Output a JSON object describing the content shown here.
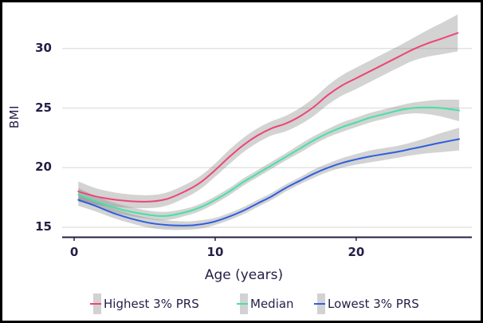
{
  "window": {
    "bg": "#ffffff",
    "frame_color": "#000000",
    "text_color": "#241f47"
  },
  "chart_data": {
    "type": "line",
    "title": "",
    "xlabel": "Age (years)",
    "ylabel": "BMI",
    "x_ticks": [
      "0",
      "10",
      "20"
    ],
    "x_tick_values": [
      0,
      10,
      20
    ],
    "y_ticks": [
      "15",
      "20",
      "25",
      "30"
    ],
    "y_tick_values": [
      15,
      20,
      25,
      30
    ],
    "xlim": [
      -0.85,
      28.2
    ],
    "ylim": [
      14.2,
      33.26
    ],
    "grid": "horizontal",
    "gridline_color": "#e3e3e3",
    "axis_color": "#241f47",
    "band_color": "rgba(130,130,130,0.35)",
    "legend_position": "bottom",
    "series": [
      {
        "name": "Highest 3% PRS",
        "color": "#ee4576",
        "x": [
          0.3,
          1.5,
          3,
          5,
          6.5,
          8,
          9,
          10,
          11,
          12,
          13,
          14,
          15,
          16,
          17,
          18,
          19,
          20,
          21,
          22,
          23,
          24,
          25,
          26,
          27.2
        ],
        "y": [
          18.0,
          17.6,
          17.3,
          17.15,
          17.35,
          18.1,
          18.8,
          19.8,
          20.9,
          21.9,
          22.7,
          23.3,
          23.7,
          24.3,
          25.1,
          26.1,
          26.9,
          27.5,
          28.1,
          28.7,
          29.3,
          29.9,
          30.4,
          30.8,
          31.3
        ],
        "band_low": [
          17.15,
          16.9,
          16.7,
          16.6,
          16.8,
          17.55,
          18.25,
          19.25,
          20.3,
          21.3,
          22.1,
          22.7,
          23.05,
          23.6,
          24.35,
          25.3,
          26.05,
          26.6,
          27.2,
          27.8,
          28.4,
          28.95,
          29.3,
          29.5,
          29.75
        ],
        "band_high": [
          18.85,
          18.3,
          17.9,
          17.7,
          17.9,
          18.65,
          19.35,
          20.35,
          21.5,
          22.5,
          23.3,
          23.9,
          24.35,
          25.0,
          25.85,
          26.9,
          27.75,
          28.4,
          29.0,
          29.6,
          30.2,
          30.85,
          31.5,
          32.1,
          32.85
        ]
      },
      {
        "name": "Median",
        "color": "#42e3a5",
        "x": [
          0.3,
          1.5,
          3,
          5,
          6.5,
          8,
          9,
          10,
          11,
          12,
          13,
          14,
          15,
          16,
          17,
          18,
          19,
          20,
          21,
          22,
          23,
          24,
          25,
          26,
          27.3
        ],
        "y": [
          17.75,
          17.2,
          16.6,
          16.1,
          15.95,
          16.3,
          16.7,
          17.3,
          18.0,
          18.8,
          19.5,
          20.2,
          20.9,
          21.6,
          22.3,
          22.9,
          23.4,
          23.8,
          24.2,
          24.5,
          24.8,
          25.0,
          25.05,
          25.0,
          24.8
        ],
        "band_low": [
          17.2,
          16.75,
          16.2,
          15.75,
          15.6,
          16.0,
          16.4,
          17.0,
          17.7,
          18.5,
          19.2,
          19.9,
          20.6,
          21.25,
          21.95,
          22.55,
          23.0,
          23.4,
          23.8,
          24.1,
          24.4,
          24.55,
          24.5,
          24.3,
          23.9
        ],
        "band_high": [
          18.3,
          17.65,
          17.0,
          16.45,
          16.3,
          16.6,
          17.0,
          17.6,
          18.3,
          19.1,
          19.8,
          20.5,
          21.2,
          21.95,
          22.65,
          23.25,
          23.8,
          24.2,
          24.6,
          24.9,
          25.2,
          25.45,
          25.6,
          25.7,
          25.7
        ]
      },
      {
        "name": "Lowest 3% PRS",
        "color": "#2e5fe0",
        "x": [
          0.3,
          1.5,
          3,
          5,
          6.5,
          8,
          9,
          10,
          11,
          12,
          13,
          14,
          15,
          16,
          17,
          18,
          19,
          20,
          21,
          22,
          23,
          24,
          25,
          26,
          27.3
        ],
        "y": [
          17.3,
          16.8,
          16.1,
          15.45,
          15.2,
          15.15,
          15.25,
          15.5,
          15.9,
          16.4,
          17.0,
          17.6,
          18.3,
          18.9,
          19.5,
          20.0,
          20.4,
          20.7,
          20.95,
          21.15,
          21.35,
          21.6,
          21.85,
          22.1,
          22.4
        ],
        "band_low": [
          16.8,
          16.35,
          15.7,
          15.05,
          14.8,
          14.8,
          14.9,
          15.2,
          15.6,
          16.1,
          16.7,
          17.3,
          18.0,
          18.6,
          19.15,
          19.65,
          20.0,
          20.25,
          20.45,
          20.65,
          20.85,
          21.05,
          21.2,
          21.3,
          21.45
        ],
        "band_high": [
          17.8,
          17.25,
          16.5,
          15.85,
          15.6,
          15.5,
          15.6,
          15.8,
          16.2,
          16.7,
          17.3,
          17.9,
          18.6,
          19.2,
          19.85,
          20.35,
          20.8,
          21.15,
          21.45,
          21.65,
          21.85,
          22.15,
          22.5,
          22.9,
          23.35
        ]
      }
    ]
  }
}
